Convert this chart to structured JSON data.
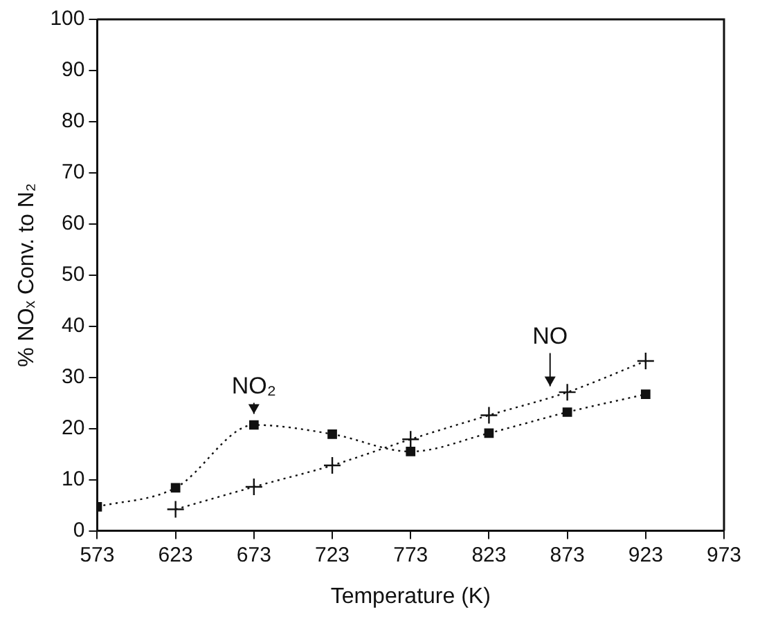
{
  "chart_data": {
    "type": "line",
    "xlabel": "Temperature (K)",
    "ylabel": "% NOₓ Conv. to N₂",
    "x": [
      573,
      623,
      673,
      723,
      773,
      823,
      873,
      923
    ],
    "series": [
      {
        "color": "#111111",
        "marker": "square",
        "values": [
          4.7,
          8.4,
          20.7,
          18.9,
          15.5,
          19.1,
          23.2,
          26.7
        ]
      },
      {
        "color": "#111111",
        "marker": "cross",
        "values": [
          null,
          4.2,
          8.6,
          12.8,
          17.9,
          22.6,
          27.1,
          33.2
        ]
      }
    ],
    "line_style": "dotted",
    "legend": false,
    "grid": false,
    "xlim": [
      573,
      973
    ],
    "xticks": [
      573,
      623,
      673,
      723,
      773,
      823,
      873,
      923,
      973
    ],
    "ylim": [
      0,
      100
    ],
    "yticks": [
      0,
      10,
      20,
      30,
      40,
      50,
      60,
      70,
      80,
      90,
      100
    ],
    "annotations": [
      {
        "text": "NO₂",
        "x": 673,
        "y": 20.7
      },
      {
        "text": "NO",
        "x": 862,
        "y": 26.1
      }
    ]
  }
}
